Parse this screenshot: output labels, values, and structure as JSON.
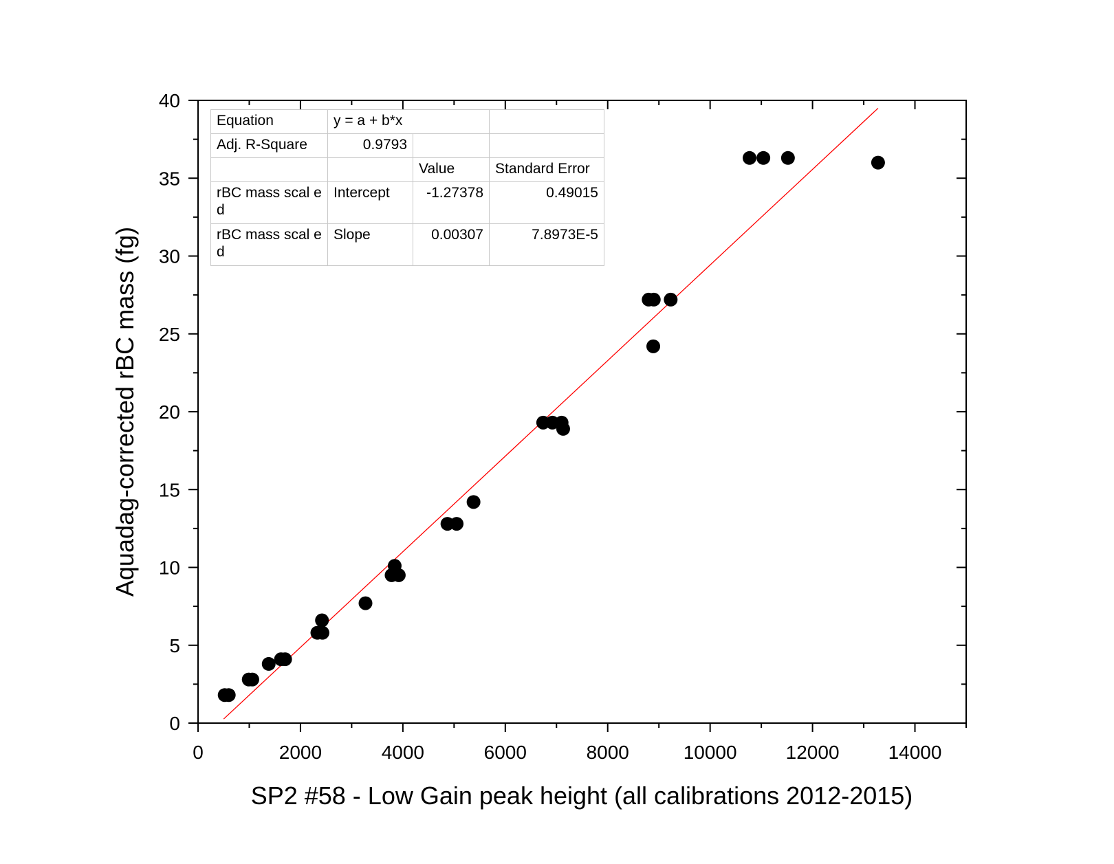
{
  "chart_data": {
    "type": "scatter",
    "xlabel": "SP2 #58 - Low Gain peak height (all calibrations 2012-2015)",
    "ylabel": "Aquadag-corrected rBC mass (fg)",
    "xlim": [
      0,
      15000
    ],
    "ylim": [
      0,
      40
    ],
    "x_ticks": [
      0,
      2000,
      4000,
      6000,
      8000,
      10000,
      12000,
      14000
    ],
    "y_ticks": [
      0,
      5,
      10,
      15,
      20,
      25,
      30,
      35,
      40
    ],
    "grid": false,
    "point_color": "#000000",
    "fit_line_color": "#ff0000",
    "points": [
      {
        "x": 520,
        "y": 1.8
      },
      {
        "x": 600,
        "y": 1.8
      },
      {
        "x": 990,
        "y": 2.8
      },
      {
        "x": 1060,
        "y": 2.8
      },
      {
        "x": 1380,
        "y": 3.8
      },
      {
        "x": 1620,
        "y": 4.1
      },
      {
        "x": 1700,
        "y": 4.1
      },
      {
        "x": 2330,
        "y": 5.8
      },
      {
        "x": 2430,
        "y": 5.8
      },
      {
        "x": 2420,
        "y": 6.6
      },
      {
        "x": 3270,
        "y": 7.7
      },
      {
        "x": 3780,
        "y": 9.5
      },
      {
        "x": 3920,
        "y": 9.5
      },
      {
        "x": 3840,
        "y": 10.1
      },
      {
        "x": 4870,
        "y": 12.8
      },
      {
        "x": 5050,
        "y": 12.8
      },
      {
        "x": 5380,
        "y": 14.2
      },
      {
        "x": 6740,
        "y": 19.3
      },
      {
        "x": 6920,
        "y": 19.3
      },
      {
        "x": 7100,
        "y": 19.3
      },
      {
        "x": 7130,
        "y": 18.9
      },
      {
        "x": 8800,
        "y": 27.2
      },
      {
        "x": 8900,
        "y": 27.2
      },
      {
        "x": 9230,
        "y": 27.2
      },
      {
        "x": 8890,
        "y": 24.2
      },
      {
        "x": 10770,
        "y": 36.3
      },
      {
        "x": 11040,
        "y": 36.3
      },
      {
        "x": 11520,
        "y": 36.3
      },
      {
        "x": 13280,
        "y": 36.0
      }
    ],
    "fit": {
      "intercept": -1.27378,
      "slope": 0.00307,
      "x_range": [
        500,
        13280
      ]
    },
    "fit_table": {
      "equation_label": "Equation",
      "equation": "y = a + b*x",
      "adj_r_label": "Adj. R-Square",
      "adj_r_value": "0.9793",
      "value_header": "Value",
      "stderr_header": "Standard Error",
      "rows": [
        {
          "name": "rBC mass scal ed",
          "param": "Intercept",
          "value": "-1.27378",
          "stderr": "0.49015"
        },
        {
          "name": "rBC mass scal ed",
          "param": "Slope",
          "value": "0.00307",
          "stderr": "7.8973E-5"
        }
      ]
    }
  }
}
